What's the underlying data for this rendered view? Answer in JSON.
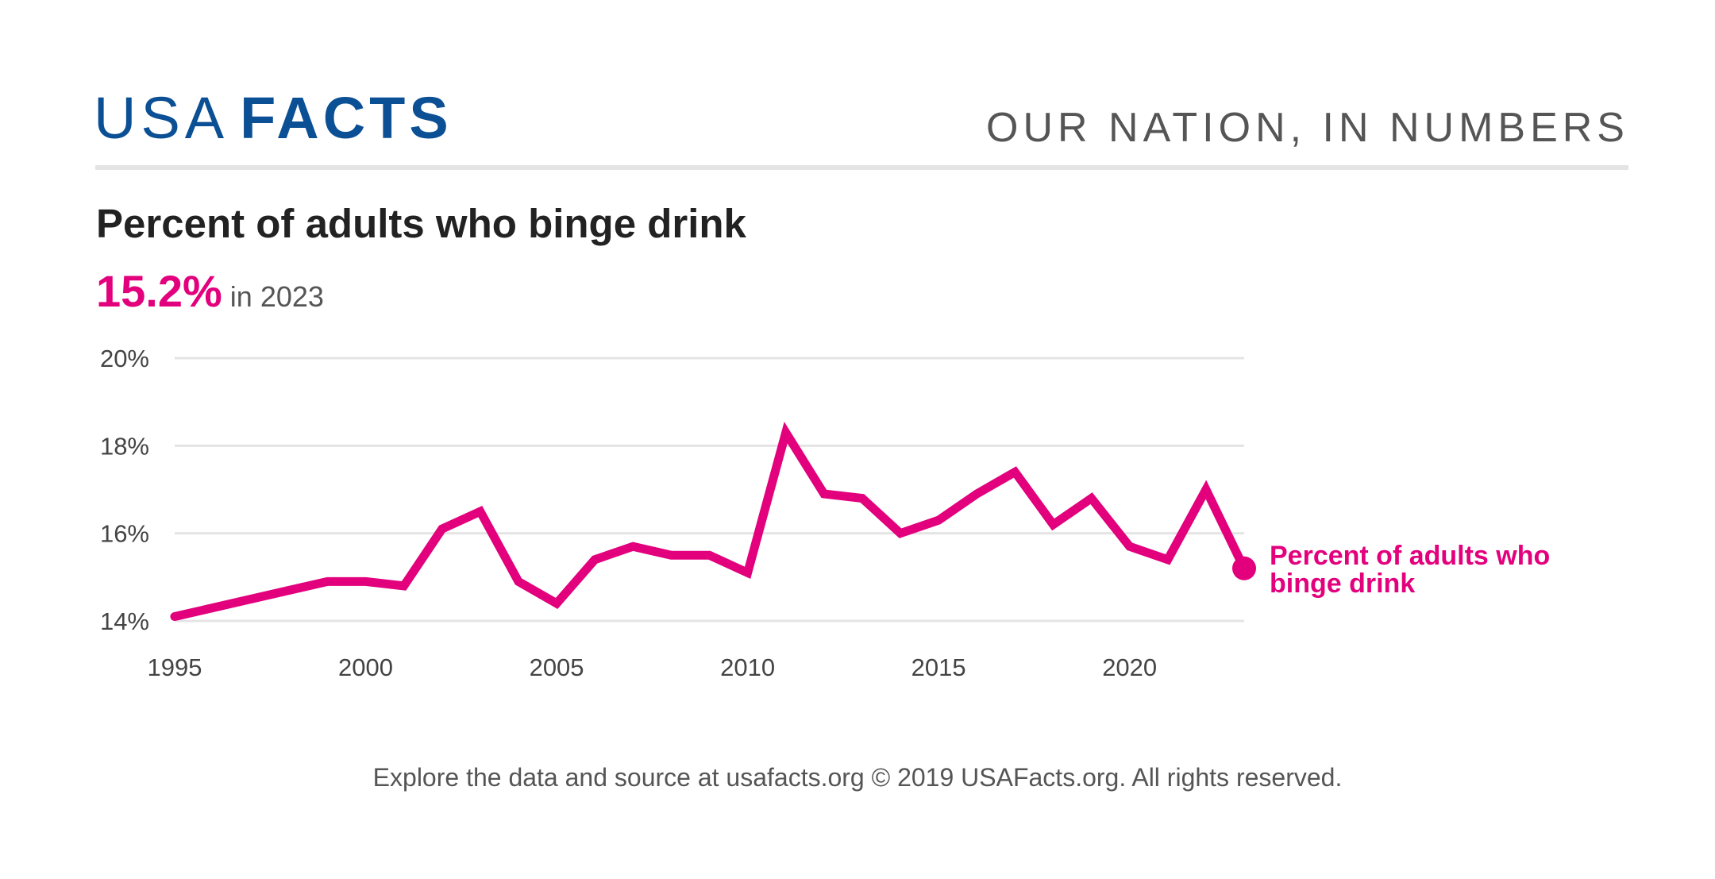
{
  "header": {
    "logo_light": "USA",
    "logo_bold": "FACTS",
    "tagline": "OUR NATION, IN NUMBERS"
  },
  "title": "Percent of adults who binge drink",
  "headline": {
    "value": "15.2%",
    "suffix": "in 2023"
  },
  "footer": "Explore the data and source at usafacts.org © 2019 USAFacts.org. All rights reserved.",
  "colors": {
    "brand": "#0b4f95",
    "series": "#e3007d",
    "grid": "#e4e4e4"
  },
  "chart_data": {
    "type": "line",
    "title": "Percent of adults who binge drink",
    "xlim": [
      1995,
      2023
    ],
    "ylim": [
      14,
      20
    ],
    "x_ticks": [
      "1995",
      "2000",
      "2005",
      "2010",
      "2015",
      "2020"
    ],
    "x_tick_values": [
      1995,
      2000,
      2005,
      2010,
      2015,
      2020
    ],
    "y_ticks": [
      "14%",
      "16%",
      "18%",
      "20%"
    ],
    "y_tick_values": [
      14,
      16,
      18,
      20
    ],
    "grid": true,
    "series": [
      {
        "name": "Percent of adults who binge drink",
        "label_lines": [
          "Percent of adults who",
          "binge drink"
        ],
        "x": [
          1995,
          1999,
          2000,
          2001,
          2002,
          2003,
          2004,
          2005,
          2006,
          2007,
          2008,
          2009,
          2010,
          2011,
          2012,
          2013,
          2014,
          2015,
          2016,
          2017,
          2018,
          2019,
          2020,
          2021,
          2022,
          2023
        ],
        "y": [
          14.1,
          14.9,
          14.9,
          14.8,
          16.1,
          16.5,
          14.9,
          14.4,
          15.4,
          15.7,
          15.5,
          15.5,
          15.1,
          18.3,
          16.9,
          16.8,
          16.0,
          16.3,
          16.9,
          17.4,
          16.2,
          16.8,
          15.7,
          15.4,
          17.0,
          15.2
        ]
      }
    ]
  }
}
